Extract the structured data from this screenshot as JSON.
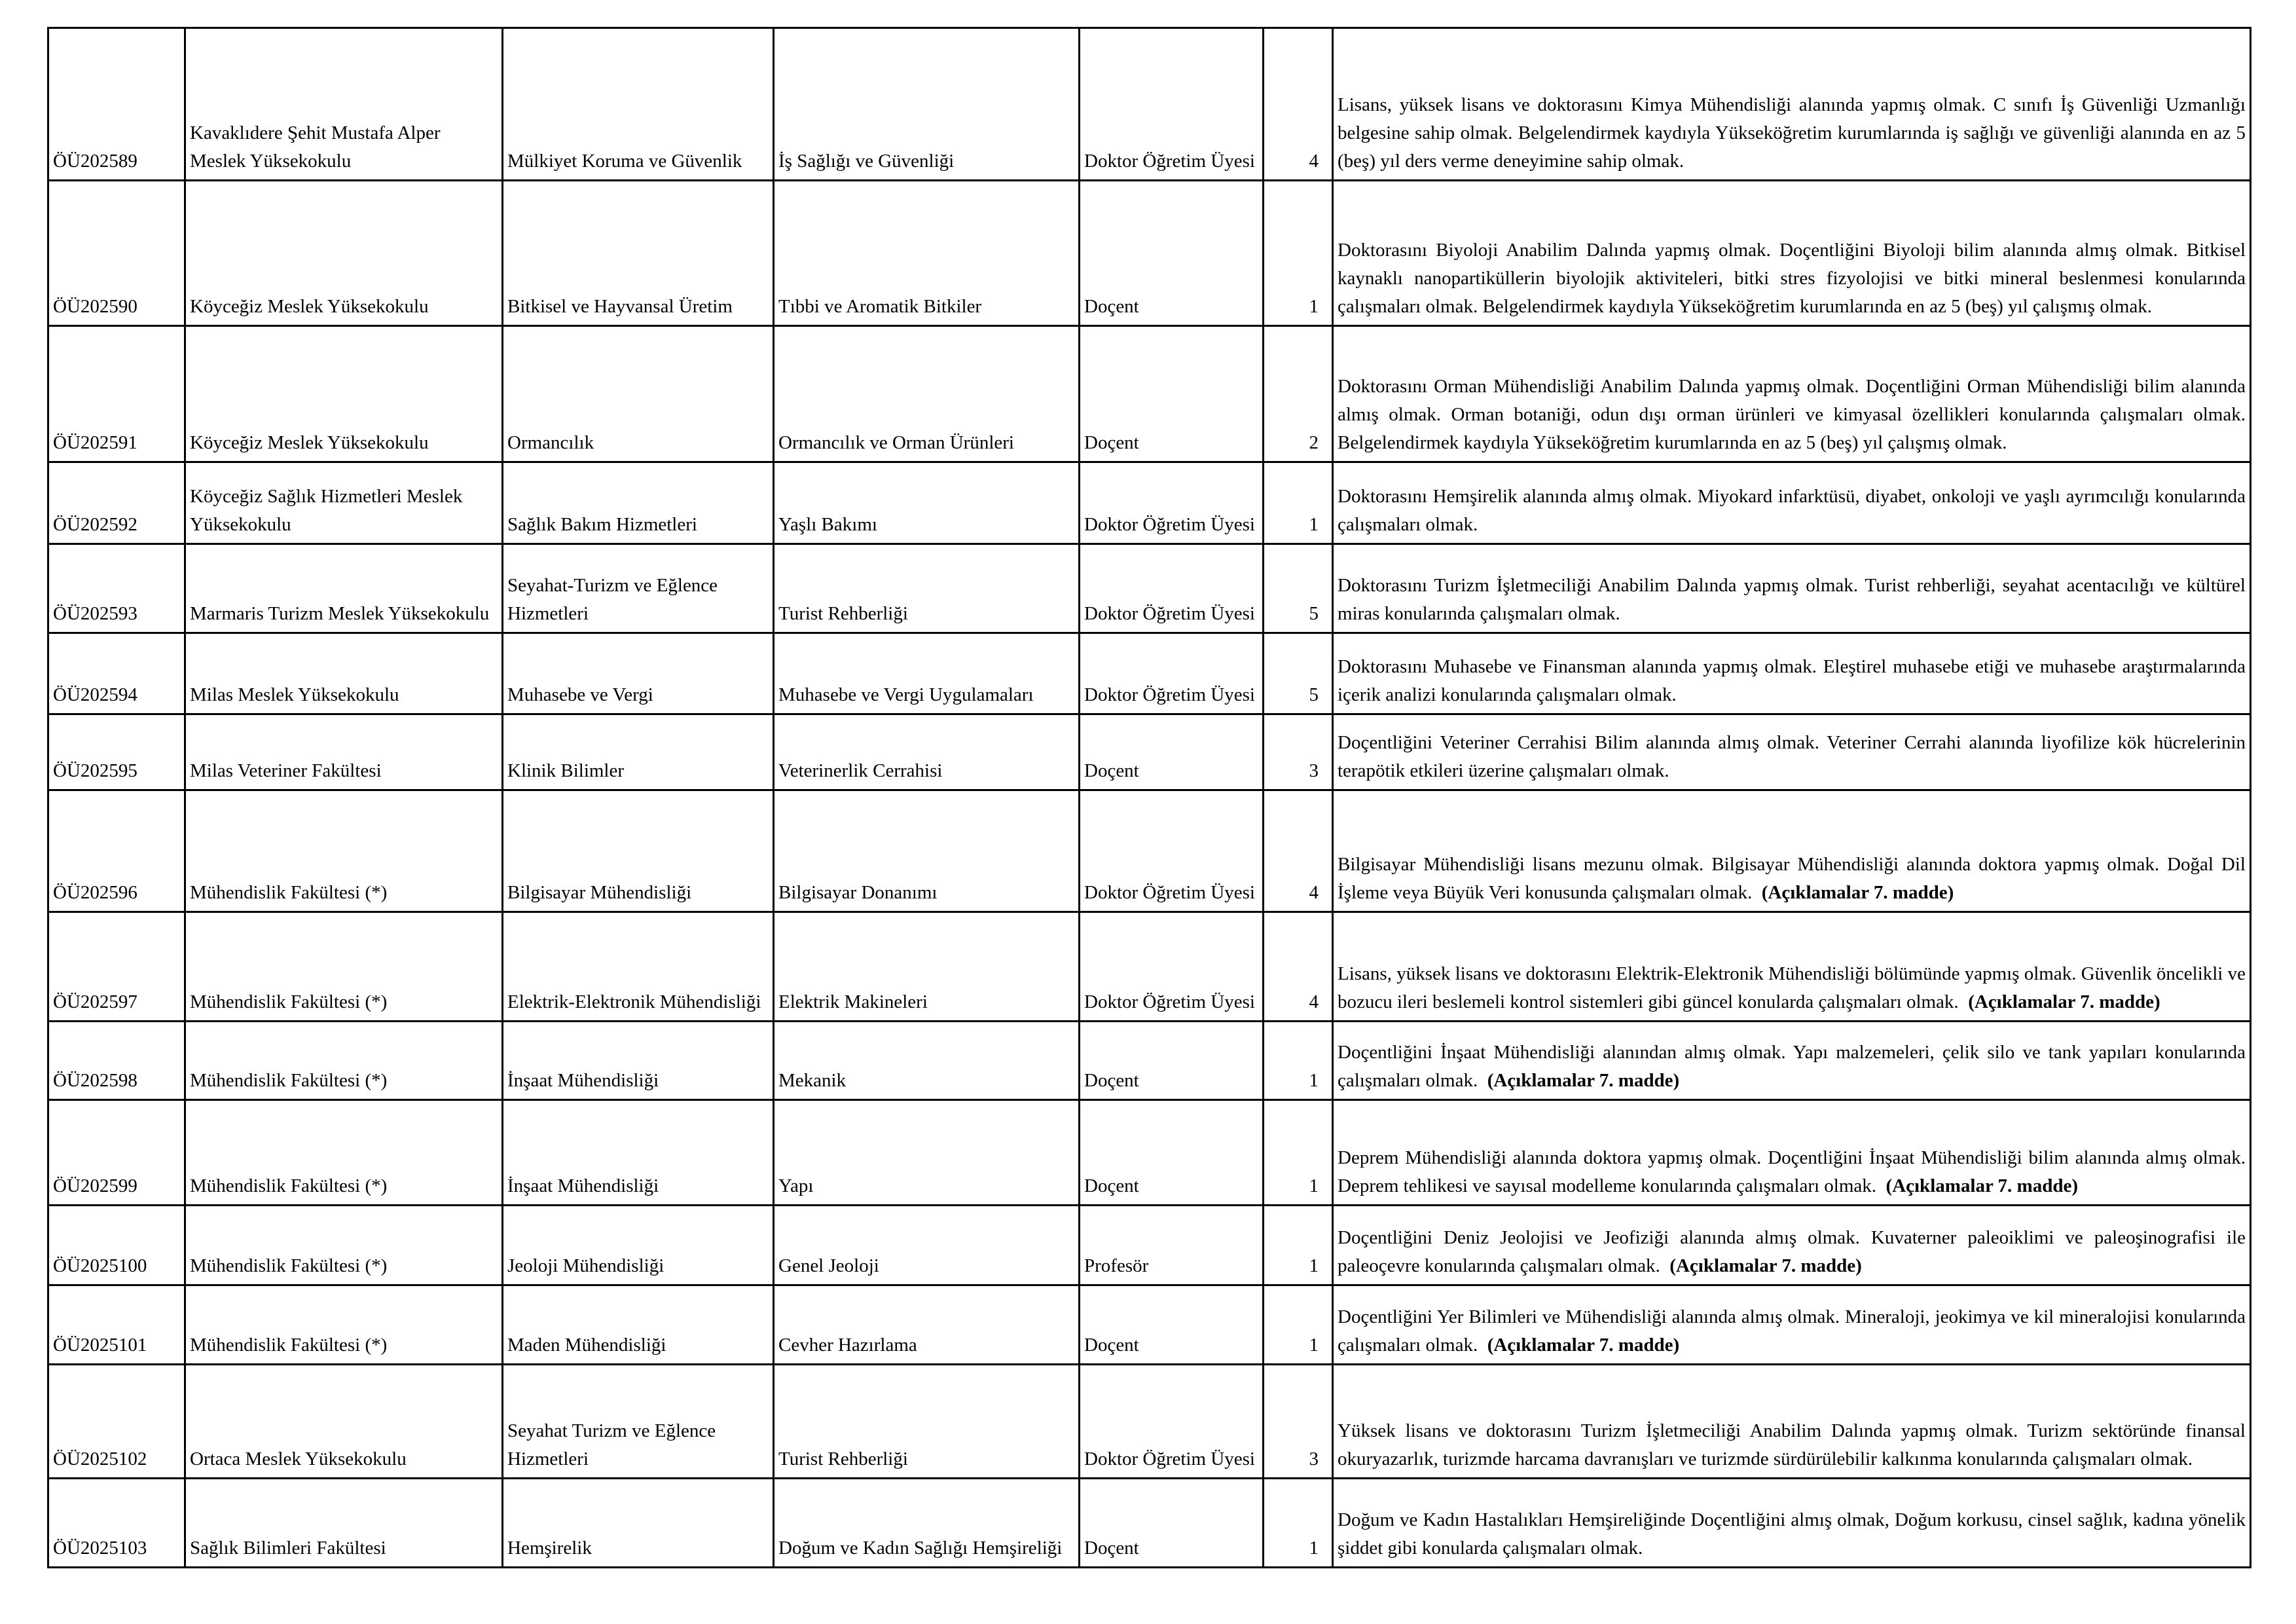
{
  "rows": [
    {
      "code": "ÖÜ202589",
      "unit": "Kavaklıdere Şehit Mustafa Alper Meslek Yüksekokulu",
      "department": "Mülkiyet Koruma ve Güvenlik",
      "program": "İş Sağlığı ve Güvenliği",
      "title": "Doktor Öğretim Üyesi",
      "count": "4",
      "desc": "Lisans, yüksek lisans ve doktorasını Kimya Mühendisliği alanında yapmış olmak. C sınıfı İş Güvenliği Uzmanlığı belgesine sahip olmak. Belgelendirmek kaydıyla Yükseköğretim kurumlarında iş sağlığı ve güvenliği alanında en az 5 (beş) yıl ders verme deneyimine sahip olmak.",
      "note": ""
    },
    {
      "code": "ÖÜ202590",
      "unit": "Köyceğiz Meslek Yüksekokulu",
      "department": "Bitkisel ve Hayvansal Üretim",
      "program": "Tıbbi ve Aromatik Bitkiler",
      "title": "Doçent",
      "count": "1",
      "desc": "Doktorasını Biyoloji Anabilim Dalında yapmış olmak. Doçentliğini Biyoloji bilim alanında almış olmak. Bitkisel kaynaklı nanopartiküllerin biyolojik aktiviteleri, bitki stres fizyolojisi ve bitki mineral beslenmesi konularında çalışmaları olmak. Belgelendirmek kaydıyla Yükseköğretim kurumlarında en az 5 (beş) yıl çalışmış olmak.",
      "note": ""
    },
    {
      "code": "ÖÜ202591",
      "unit": "Köyceğiz Meslek Yüksekokulu",
      "department": "Ormancılık",
      "program": "Ormancılık ve Orman Ürünleri",
      "title": "Doçent",
      "count": "2",
      "desc": "Doktorasını Orman Mühendisliği Anabilim Dalında yapmış olmak. Doçentliğini Orman Mühendisliği bilim alanında almış olmak. Orman botaniği, odun dışı orman ürünleri ve kimyasal özellikleri konularında çalışmaları olmak. Belgelendirmek kaydıyla Yükseköğretim kurumlarında en az 5 (beş) yıl çalışmış olmak.",
      "note": ""
    },
    {
      "code": "ÖÜ202592",
      "unit": "Köyceğiz Sağlık Hizmetleri Meslek Yüksekokulu",
      "department": "Sağlık Bakım Hizmetleri",
      "program": "Yaşlı Bakımı",
      "title": "Doktor Öğretim Üyesi",
      "count": "1",
      "desc": "Doktorasını Hemşirelik alanında almış olmak. Miyokard infarktüsü, diyabet, onkoloji ve yaşlı ayrımcılığı konularında çalışmaları olmak.",
      "note": ""
    },
    {
      "code": "ÖÜ202593",
      "unit": "Marmaris Turizm Meslek Yüksekokulu",
      "department": "Seyahat-Turizm ve Eğlence Hizmetleri",
      "program": "Turist Rehberliği",
      "title": "Doktor Öğretim Üyesi",
      "count": "5",
      "desc": "Doktorasını Turizm İşletmeciliği Anabilim Dalında yapmış olmak. Turist rehberliği, seyahat acentacılığı ve kültürel miras konularında çalışmaları olmak.",
      "note": ""
    },
    {
      "code": "ÖÜ202594",
      "unit": "Milas Meslek Yüksekokulu",
      "department": "Muhasebe ve Vergi",
      "program": "Muhasebe ve Vergi Uygulamaları",
      "title": "Doktor Öğretim Üyesi",
      "count": "5",
      "desc": "Doktorasını Muhasebe ve Finansman alanında yapmış olmak. Eleştirel muhasebe etiği ve muhasebe araştırmalarında içerik analizi konularında çalışmaları olmak.",
      "note": ""
    },
    {
      "code": "ÖÜ202595",
      "unit": "Milas Veteriner Fakültesi",
      "department": "Klinik Bilimler",
      "program": "Veterinerlik Cerrahisi",
      "title": "Doçent",
      "count": "3",
      "desc": "Doçentliğini Veteriner Cerrahisi Bilim alanında almış olmak. Veteriner Cerrahi alanında liyofilize kök hücrelerinin terapötik etkileri üzerine çalışmaları olmak.",
      "note": ""
    },
    {
      "code": "ÖÜ202596",
      "unit": "Mühendislik Fakültesi (*)",
      "department": "Bilgisayar Mühendisliği",
      "program": "Bilgisayar Donanımı",
      "title": "Doktor Öğretim Üyesi",
      "count": "4",
      "desc": "Bilgisayar Mühendisliği lisans mezunu olmak. Bilgisayar Mühendisliği alanında doktora yapmış olmak. Doğal Dil İşleme veya Büyük Veri konusunda çalışmaları olmak.",
      "note": "(Açıklamalar 7. madde)"
    },
    {
      "code": "ÖÜ202597",
      "unit": "Mühendislik Fakültesi (*)",
      "department": "Elektrik-Elektronik Mühendisliği",
      "program": "Elektrik Makineleri",
      "title": "Doktor Öğretim Üyesi",
      "count": "4",
      "desc": "Lisans, yüksek lisans ve doktorasını Elektrik-Elektronik Mühendisliği bölümünde yapmış olmak. Güvenlik öncelikli ve bozucu ileri beslemeli kontrol sistemleri gibi güncel konularda çalışmaları olmak.",
      "note": "(Açıklamalar 7. madde)"
    },
    {
      "code": "ÖÜ202598",
      "unit": "Mühendislik Fakültesi (*)",
      "department": "İnşaat Mühendisliği",
      "program": "Mekanik",
      "title": "Doçent",
      "count": "1",
      "desc": "Doçentliğini İnşaat Mühendisliği alanından almış olmak. Yapı malzemeleri, çelik silo ve tank yapıları konularında çalışmaları olmak.",
      "note": "(Açıklamalar 7. madde)"
    },
    {
      "code": "ÖÜ202599",
      "unit": "Mühendislik Fakültesi (*)",
      "department": "İnşaat Mühendisliği",
      "program": "Yapı",
      "title": "Doçent",
      "count": "1",
      "desc": "Deprem Mühendisliği alanında doktora yapmış olmak. Doçentliğini İnşaat Mühendisliği bilim alanında almış olmak. Deprem tehlikesi ve sayısal modelleme konularında çalışmaları olmak.",
      "note": "(Açıklamalar 7. madde)"
    },
    {
      "code": "ÖÜ2025100",
      "unit": "Mühendislik Fakültesi (*)",
      "department": "Jeoloji Mühendisliği",
      "program": "Genel Jeoloji",
      "title": "Profesör",
      "count": "1",
      "desc": "Doçentliğini Deniz Jeolojisi ve Jeofiziği alanında almış olmak. Kuvaterner paleoiklimi ve paleoşinografisi ile paleoçevre konularında çalışmaları olmak.",
      "note": "(Açıklamalar 7. madde)"
    },
    {
      "code": "ÖÜ2025101",
      "unit": "Mühendislik Fakültesi (*)",
      "department": "Maden Mühendisliği",
      "program": "Cevher Hazırlama",
      "title": "Doçent",
      "count": "1",
      "desc": "Doçentliğini Yer Bilimleri ve Mühendisliği alanında almış olmak. Mineraloji, jeokimya ve kil mineralojisi konularında çalışmaları olmak.",
      "note": "(Açıklamalar 7. madde)"
    },
    {
      "code": "ÖÜ2025102",
      "unit": "Ortaca Meslek Yüksekokulu",
      "department": "Seyahat Turizm ve Eğlence Hizmetleri",
      "program": "Turist Rehberliği",
      "title": "Doktor Öğretim Üyesi",
      "count": "3",
      "desc": "Yüksek lisans ve doktorasını Turizm İşletmeciliği Anabilim Dalında yapmış olmak. Turizm sektöründe finansal okuryazarlık, turizmde harcama davranışları ve turizmde sürdürülebilir kalkınma konularında çalışmaları olmak.",
      "note": ""
    },
    {
      "code": "ÖÜ2025103",
      "unit": "Sağlık Bilimleri Fakültesi",
      "department": "Hemşirelik",
      "program": "Doğum ve Kadın Sağlığı Hemşireliği",
      "title": "Doçent",
      "count": "1",
      "desc": "Doğum ve Kadın Hastalıkları Hemşireliğinde Doçentliğini almış olmak, Doğum korkusu, cinsel sağlık, kadına yönelik şiddet gibi konularda çalışmaları olmak.",
      "note": ""
    }
  ]
}
